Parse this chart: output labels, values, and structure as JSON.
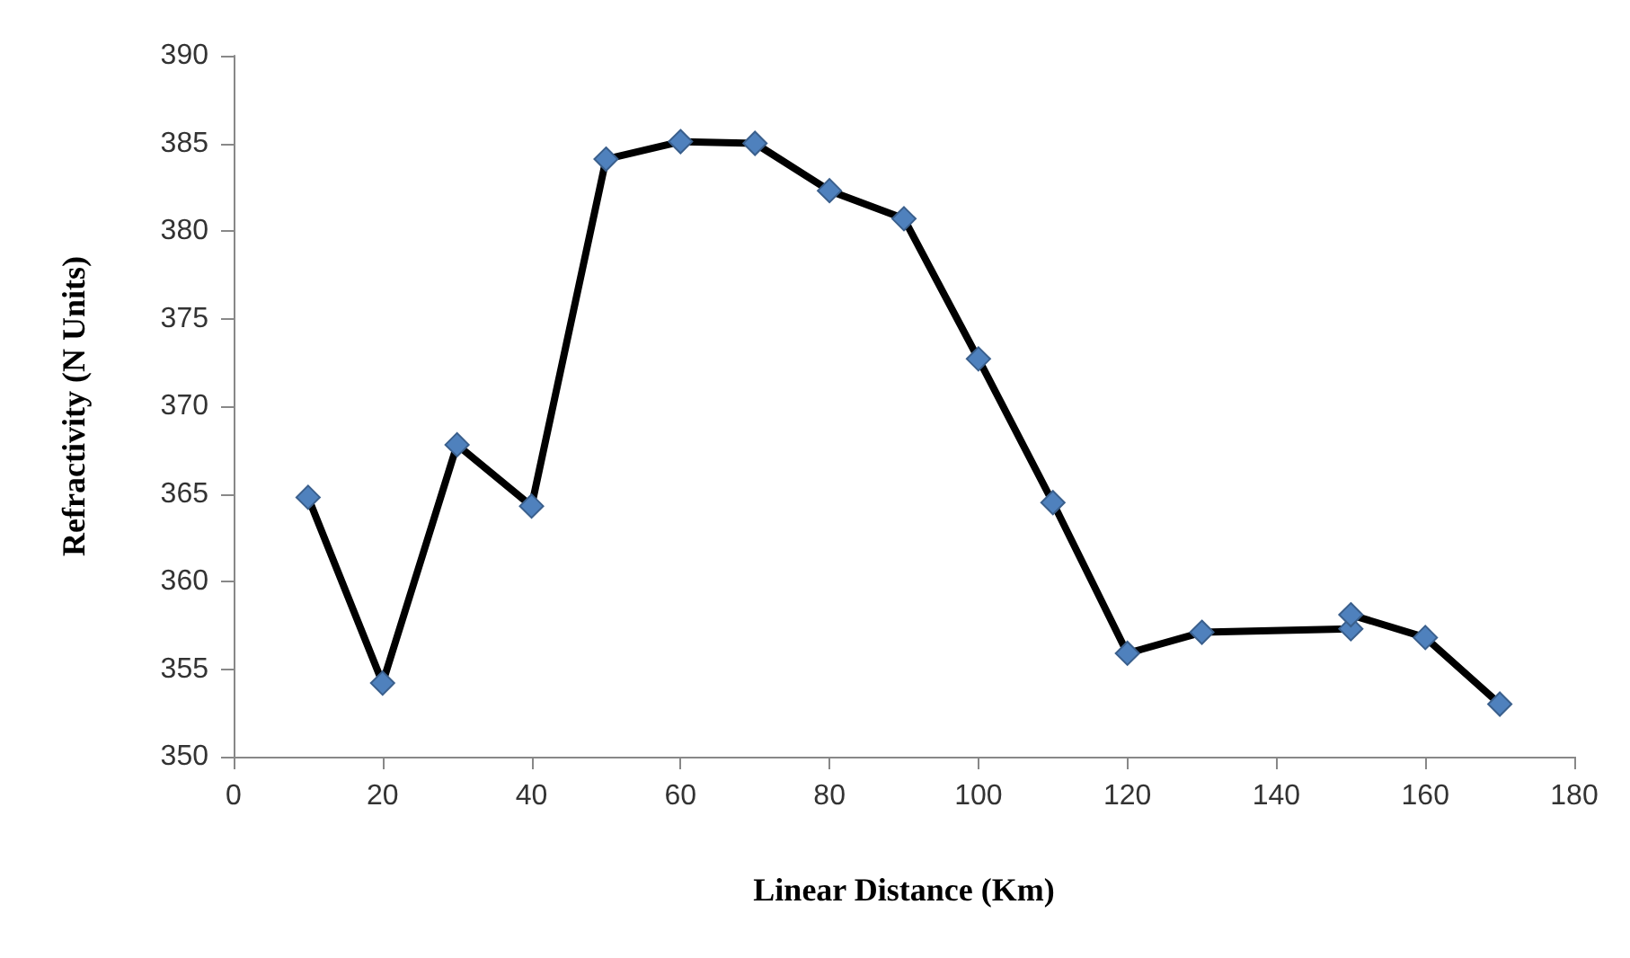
{
  "chart_data": {
    "type": "line",
    "xlabel": "Linear Distance (Km)",
    "ylabel": "Refractivity (N Units)",
    "x": [
      10,
      20,
      30,
      40,
      50,
      60,
      70,
      80,
      90,
      100,
      110,
      120,
      130,
      150,
      150,
      160,
      170
    ],
    "series": [
      {
        "color": "#000000",
        "values": [
          364.8,
          354.2,
          367.8,
          364.3,
          384.1,
          385.1,
          385.0,
          382.3,
          380.7,
          372.7,
          364.5,
          355.9,
          357.1,
          357.3,
          358.1,
          356.8,
          353.0
        ]
      }
    ],
    "marker": "diamond",
    "line_style": "solid",
    "grid": false,
    "xlim": [
      0,
      180
    ],
    "xticks": [
      0,
      20,
      40,
      60,
      80,
      100,
      120,
      140,
      160,
      180
    ],
    "ylim": [
      350,
      390
    ],
    "yticks": [
      350,
      355,
      360,
      365,
      370,
      375,
      380,
      385,
      390
    ]
  }
}
